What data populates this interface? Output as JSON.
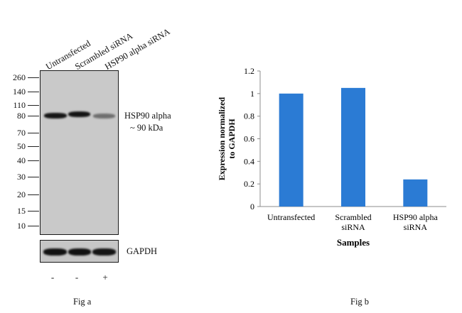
{
  "fig_a": {
    "lanes": [
      "Untransfected",
      "Scrambled siRNA",
      "HSP90 alpha siRNA"
    ],
    "mw_markers": [
      "260",
      "140",
      "110",
      "80",
      "70",
      "50",
      "40",
      "30",
      "20",
      "15",
      "10"
    ],
    "band_label_line1": "HSP90 alpha",
    "band_label_line2": "~ 90 kDa",
    "loading_label": "GAPDH",
    "treatments": [
      "-",
      "-",
      "+"
    ],
    "caption": "Fig a"
  },
  "fig_b": {
    "caption": "Fig b"
  },
  "chart_data": {
    "type": "bar",
    "categories": [
      [
        "Untransfected"
      ],
      [
        "Scrambled",
        "siRNA"
      ],
      [
        "HSP90 alpha",
        "siRNA"
      ]
    ],
    "values": [
      1.0,
      1.05,
      0.24
    ],
    "xlabel": "Samples",
    "ylabel_lines": [
      "Expression normalized",
      "to GAPDH"
    ],
    "ylim": [
      0,
      1.2
    ],
    "yticks": [
      "0",
      "0.2",
      "0.4",
      "0.6",
      "0.8",
      "1",
      "1.2"
    ],
    "grid": false,
    "bar_color": "#2b7bd4"
  }
}
